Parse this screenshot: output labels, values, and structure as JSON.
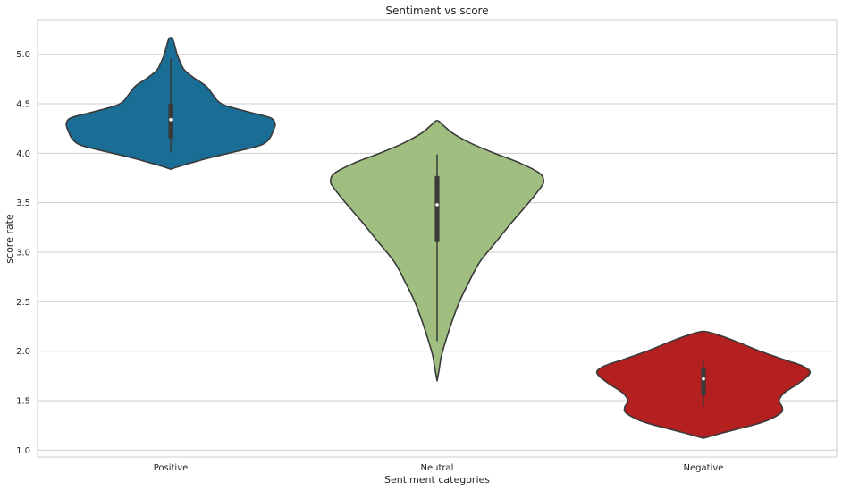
{
  "chart_data": {
    "type": "violin",
    "title": "Sentiment vs score",
    "xlabel": "Sentiment categories",
    "ylabel": "score rate",
    "ylim": [
      0.93,
      5.35
    ],
    "yticks": [
      1.0,
      1.5,
      2.0,
      2.5,
      3.0,
      3.5,
      4.0,
      4.5,
      5.0
    ],
    "ytick_labels": [
      "1.0",
      "1.5",
      "2.0",
      "2.5",
      "3.0",
      "3.5",
      "4.0",
      "4.5",
      "5.0"
    ],
    "grid": true,
    "categories": [
      "Positive",
      "Neutral",
      "Negative"
    ],
    "series": [
      {
        "category": "Positive",
        "color": "#1a6e96",
        "min": 4.01,
        "q1": 4.15,
        "median": 4.34,
        "q3": 4.5,
        "max": 4.96,
        "density": [
          [
            3.84,
            0.0
          ],
          [
            3.88,
            0.12
          ],
          [
            3.95,
            0.35
          ],
          [
            4.02,
            0.62
          ],
          [
            4.08,
            0.84
          ],
          [
            4.14,
            0.92
          ],
          [
            4.22,
            0.96
          ],
          [
            4.3,
            0.98
          ],
          [
            4.36,
            0.93
          ],
          [
            4.42,
            0.72
          ],
          [
            4.48,
            0.52
          ],
          [
            4.53,
            0.44
          ],
          [
            4.6,
            0.39
          ],
          [
            4.68,
            0.33
          ],
          [
            4.76,
            0.22
          ],
          [
            4.84,
            0.13
          ],
          [
            4.92,
            0.09
          ],
          [
            5.0,
            0.06
          ],
          [
            5.08,
            0.04
          ],
          [
            5.15,
            0.02
          ],
          [
            5.17,
            0.0
          ]
        ]
      },
      {
        "category": "Neutral",
        "color": "#9fbe7f",
        "min": 2.1,
        "q1": 3.1,
        "median": 3.48,
        "q3": 3.77,
        "max": 3.99,
        "density": [
          [
            1.7,
            0.0
          ],
          [
            1.82,
            0.02
          ],
          [
            1.95,
            0.04
          ],
          [
            2.1,
            0.08
          ],
          [
            2.3,
            0.14
          ],
          [
            2.5,
            0.21
          ],
          [
            2.7,
            0.3
          ],
          [
            2.9,
            0.4
          ],
          [
            3.1,
            0.55
          ],
          [
            3.3,
            0.7
          ],
          [
            3.5,
            0.86
          ],
          [
            3.65,
            0.97
          ],
          [
            3.72,
            1.0
          ],
          [
            3.8,
            0.96
          ],
          [
            3.9,
            0.78
          ],
          [
            4.0,
            0.54
          ],
          [
            4.1,
            0.32
          ],
          [
            4.2,
            0.15
          ],
          [
            4.28,
            0.06
          ],
          [
            4.33,
            0.0
          ]
        ]
      },
      {
        "category": "Negative",
        "color": "#b41f1f",
        "min": 1.44,
        "q1": 1.55,
        "median": 1.72,
        "q3": 1.83,
        "max": 1.9,
        "density": [
          [
            1.12,
            0.0
          ],
          [
            1.18,
            0.2
          ],
          [
            1.28,
            0.55
          ],
          [
            1.37,
            0.72
          ],
          [
            1.43,
            0.74
          ],
          [
            1.5,
            0.71
          ],
          [
            1.58,
            0.76
          ],
          [
            1.68,
            0.9
          ],
          [
            1.78,
            1.0
          ],
          [
            1.85,
            0.93
          ],
          [
            1.92,
            0.74
          ],
          [
            2.0,
            0.53
          ],
          [
            2.1,
            0.3
          ],
          [
            2.17,
            0.12
          ],
          [
            2.2,
            0.0
          ]
        ]
      }
    ]
  }
}
